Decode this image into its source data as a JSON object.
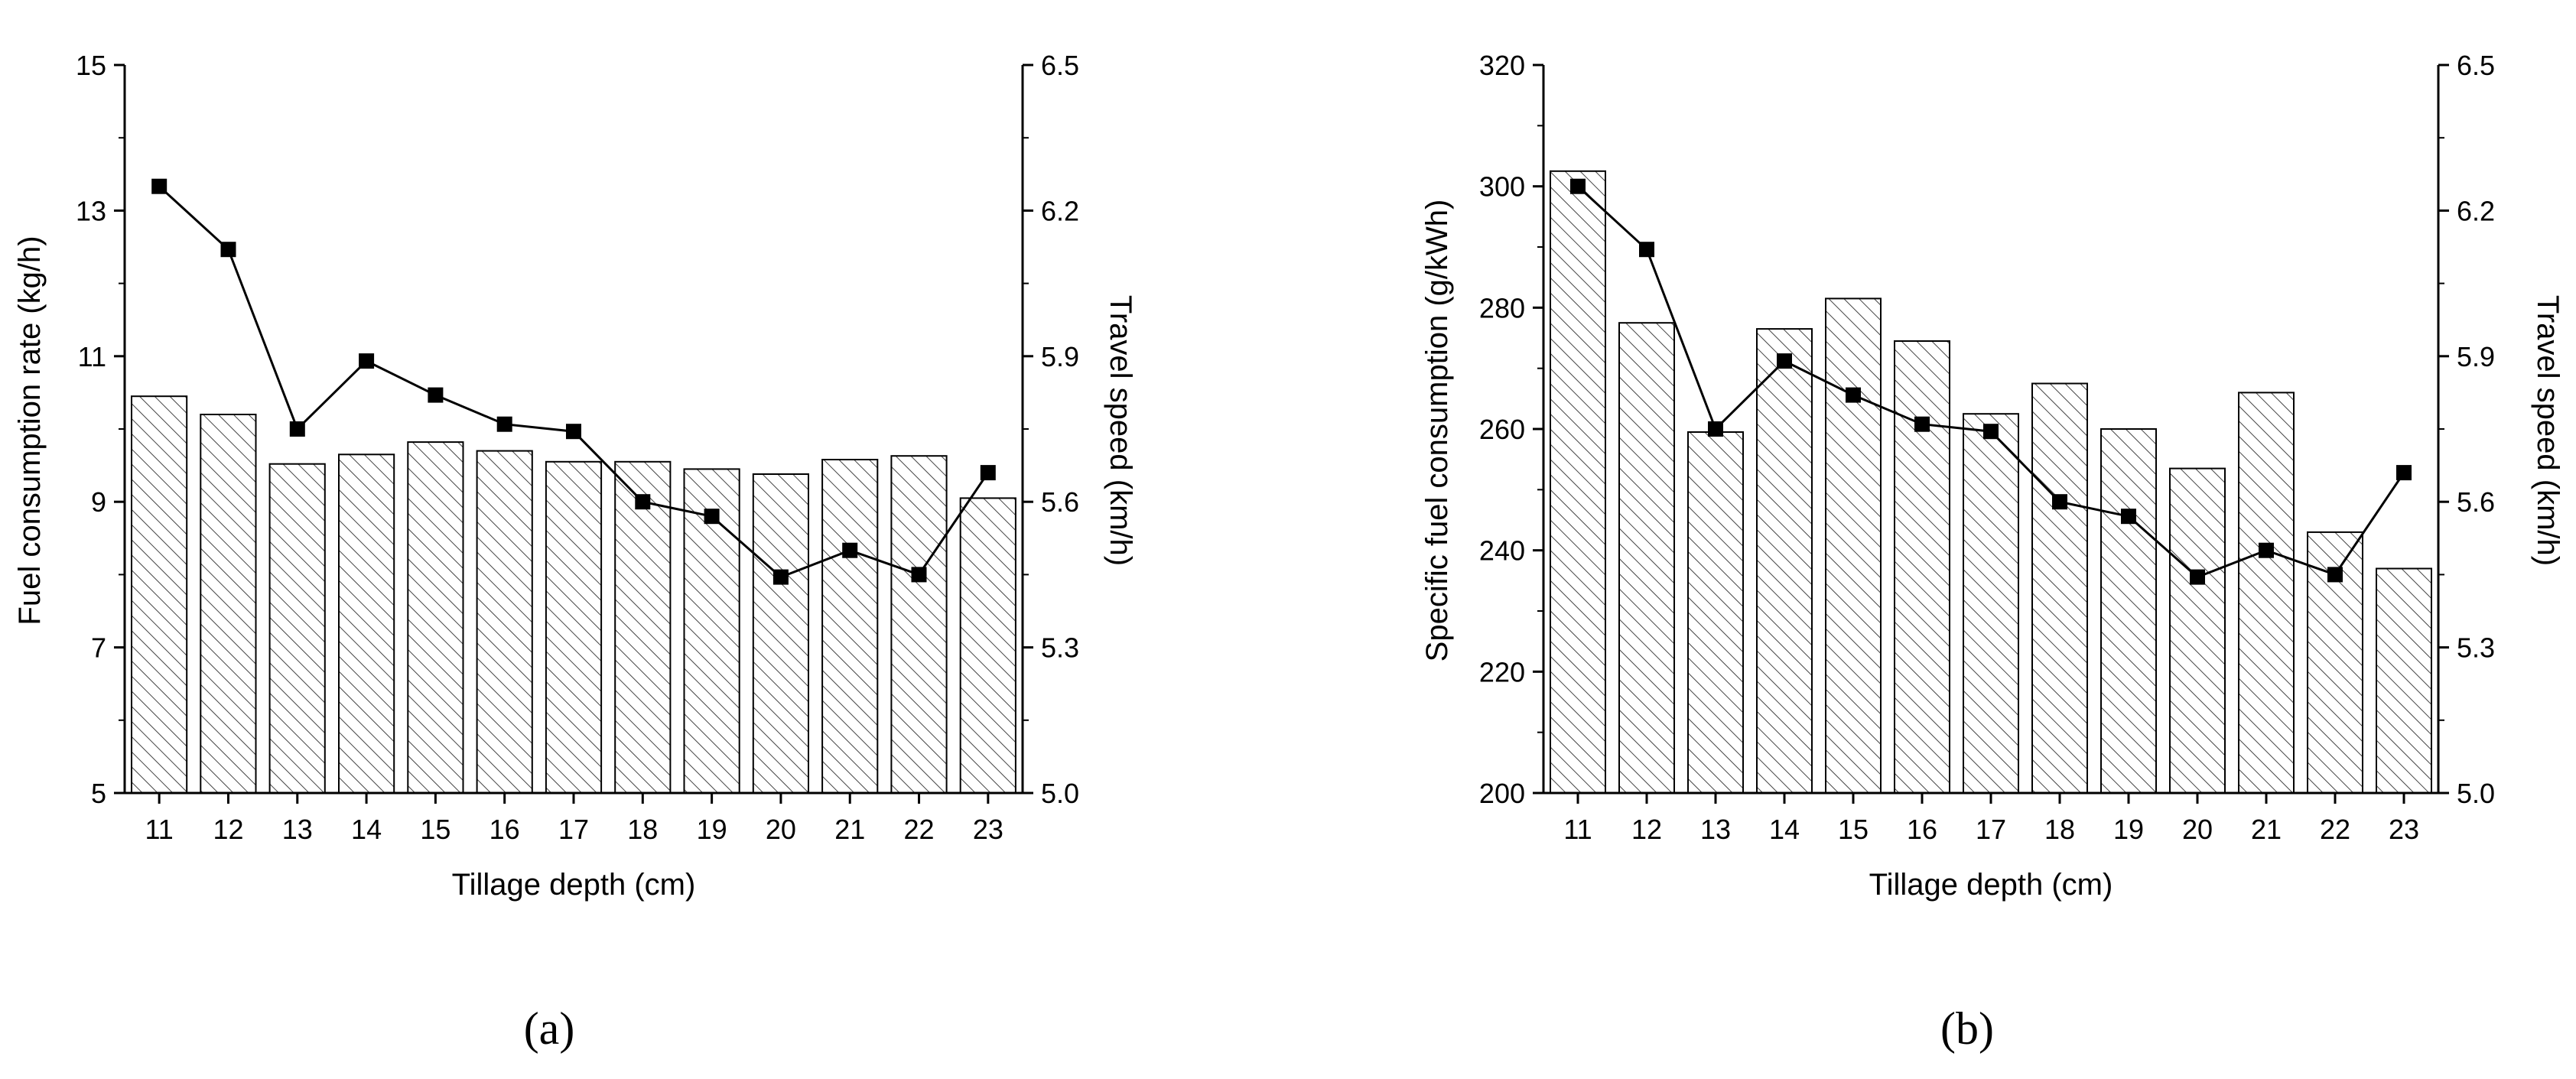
{
  "chart_data": [
    {
      "type": "bar",
      "panel_label": "(a)",
      "xlabel": "Tillage depth (cm)",
      "ylabel": "Fuel consumption rate (kg/h)",
      "y2label": "Travel speed (km/h)",
      "categories": [
        "11",
        "12",
        "13",
        "14",
        "15",
        "16",
        "17",
        "18",
        "19",
        "20",
        "21",
        "22",
        "23"
      ],
      "ylim": [
        5,
        15
      ],
      "yticks": [
        "5",
        "7",
        "9",
        "11",
        "13",
        "15"
      ],
      "y2lim": [
        5.0,
        6.5
      ],
      "y2ticks": [
        "5.0",
        "5.3",
        "5.6",
        "5.9",
        "6.2",
        "6.5"
      ],
      "bar_fill": "hatched",
      "series": [
        {
          "kind": "bar",
          "axis": "left",
          "values": [
            10.45,
            10.2,
            9.52,
            9.65,
            9.82,
            9.7,
            9.55,
            9.55,
            9.45,
            9.38,
            9.58,
            9.63,
            9.05
          ]
        },
        {
          "kind": "line",
          "axis": "right",
          "marker": "square",
          "color": "#000000",
          "values": [
            6.25,
            6.12,
            5.75,
            5.89,
            5.82,
            5.76,
            5.745,
            5.6,
            5.57,
            5.445,
            5.5,
            5.45,
            5.66
          ]
        }
      ],
      "grid": false
    },
    {
      "type": "bar",
      "panel_label": "(b)",
      "xlabel": "Tillage depth (cm)",
      "ylabel": "Specific fuel consumption (g/kWh)",
      "y2label": "Travel speed (km/h)",
      "categories": [
        "11",
        "12",
        "13",
        "14",
        "15",
        "16",
        "17",
        "18",
        "19",
        "20",
        "21",
        "22",
        "23"
      ],
      "ylim": [
        200,
        320
      ],
      "yticks": [
        "200",
        "220",
        "240",
        "260",
        "280",
        "300",
        "320"
      ],
      "y2lim": [
        5.0,
        6.5
      ],
      "y2ticks": [
        "5.0",
        "5.3",
        "5.6",
        "5.9",
        "6.2",
        "6.5"
      ],
      "bar_fill": "hatched",
      "series": [
        {
          "kind": "bar",
          "axis": "left",
          "values": [
            302.5,
            277.5,
            259.5,
            276.5,
            281.5,
            274.5,
            262.5,
            267.5,
            260,
            253.5,
            266,
            243,
            237
          ]
        },
        {
          "kind": "line",
          "axis": "right",
          "marker": "square",
          "color": "#000000",
          "values": [
            6.25,
            6.12,
            5.75,
            5.89,
            5.82,
            5.76,
            5.745,
            5.6,
            5.57,
            5.445,
            5.5,
            5.45,
            5.66
          ]
        }
      ],
      "grid": false
    }
  ]
}
